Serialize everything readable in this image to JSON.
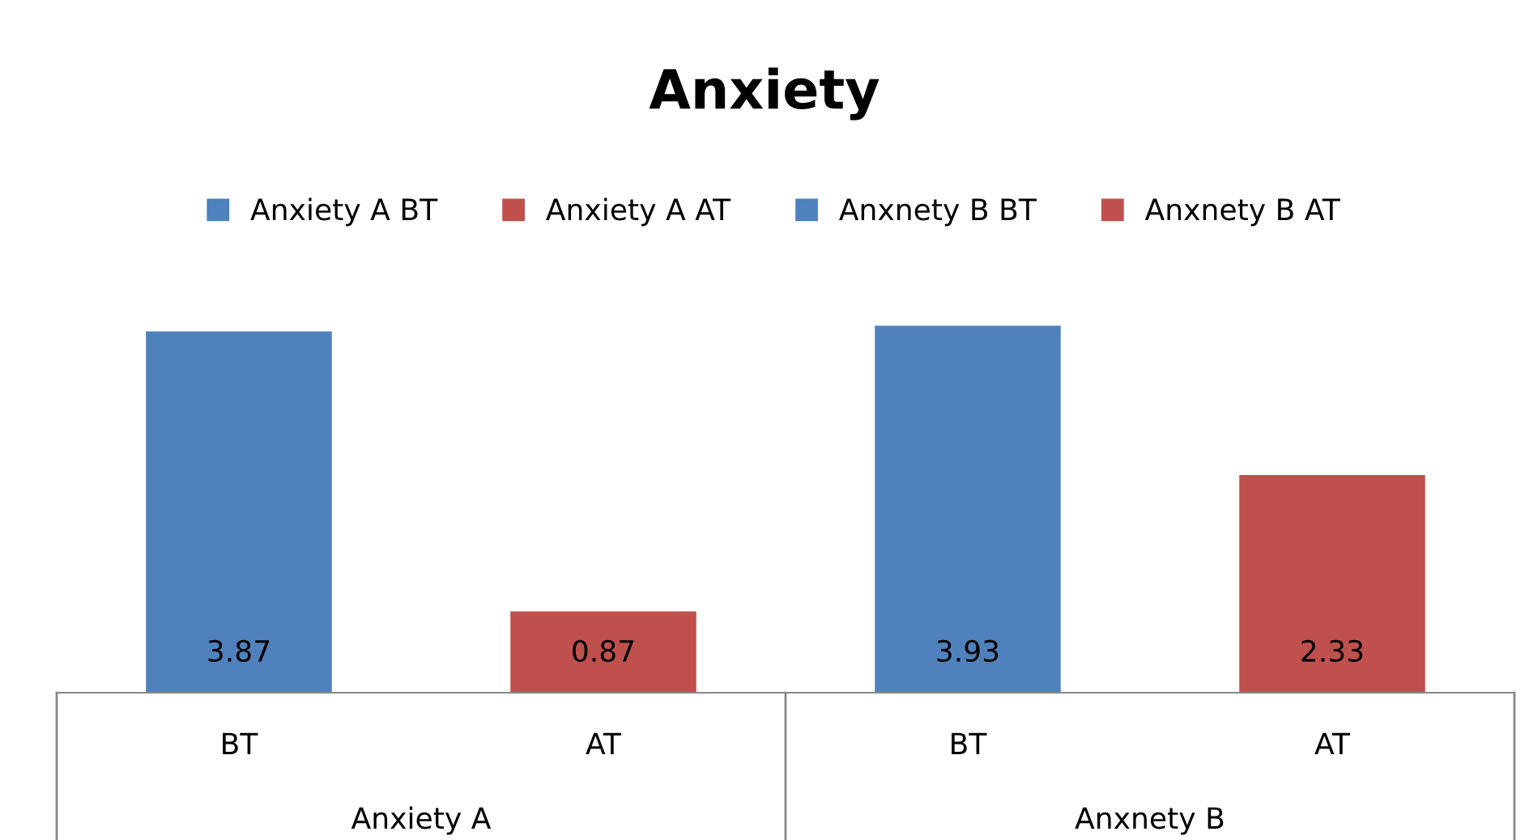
{
  "chart_data": {
    "type": "bar",
    "title": "Anxiety",
    "categories": [
      "BT",
      "AT",
      "BT",
      "AT"
    ],
    "series": [
      {
        "name": "Anxiety A BT",
        "color": "#4f81bd",
        "values": [
          3.87,
          null,
          null,
          null
        ]
      },
      {
        "name": "Anxiety A AT",
        "color": "#c0504d",
        "values": [
          null,
          0.87,
          null,
          null
        ]
      },
      {
        "name": "Anxnety B BT",
        "color": "#4f81bd",
        "values": [
          null,
          null,
          3.93,
          null
        ]
      },
      {
        "name": "Anxnety B AT",
        "color": "#c0504d",
        "values": [
          null,
          null,
          null,
          2.33
        ]
      }
    ],
    "annotations": [
      "Anxiety A",
      "Anxnety B"
    ],
    "data_labels": true,
    "legend": "top"
  }
}
